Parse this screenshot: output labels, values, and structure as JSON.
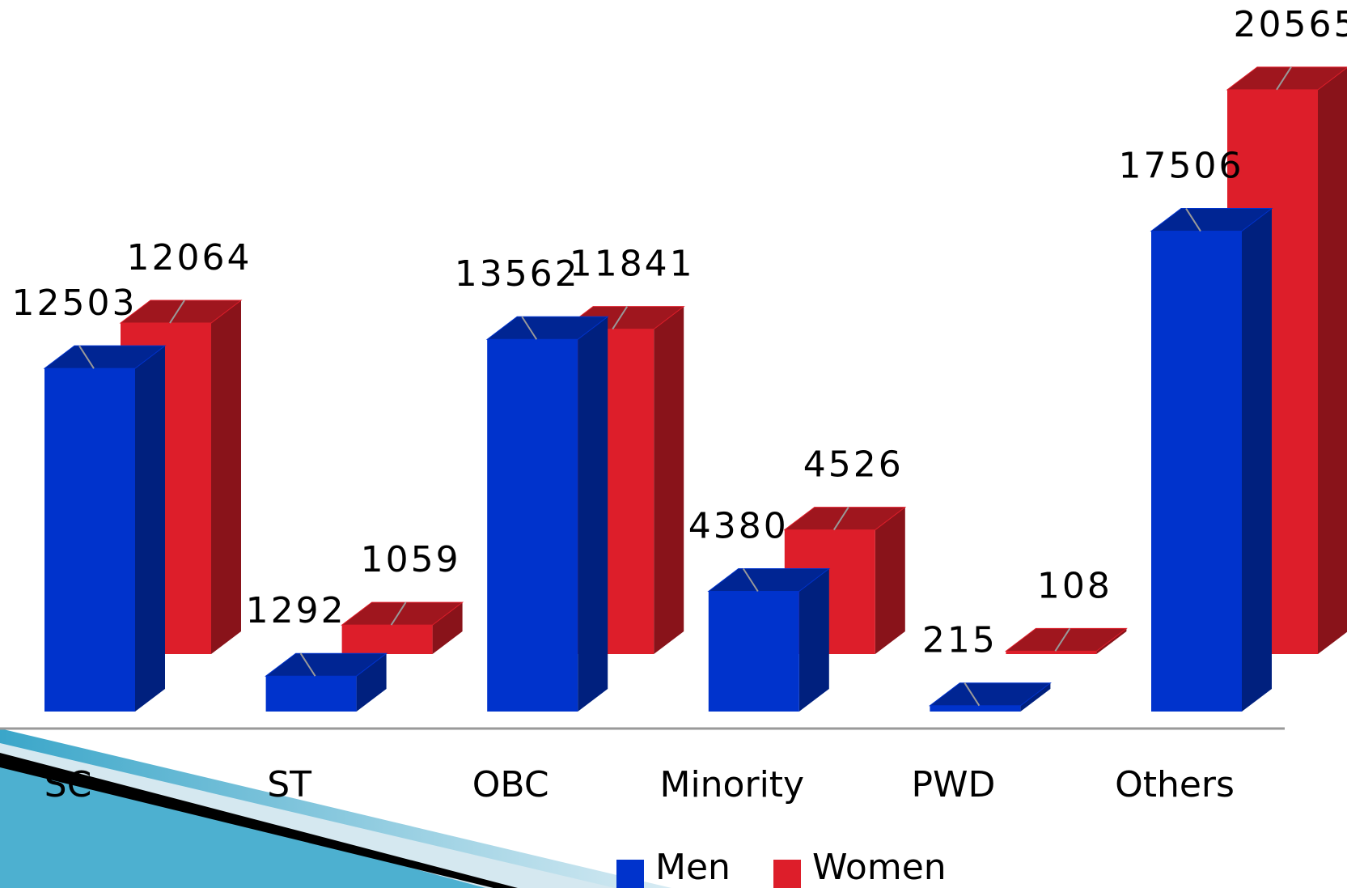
{
  "chart_data": {
    "type": "bar3d",
    "categories": [
      "SC",
      "ST",
      "OBC",
      "Minority",
      "PWD",
      "Others"
    ],
    "series": [
      {
        "name": "Men",
        "color": "#0033cc",
        "values": [
          12503,
          1292,
          13562,
          4380,
          215,
          17506
        ]
      },
      {
        "name": "Women",
        "color": "#dd1e2a",
        "values": [
          12064,
          1059,
          11841,
          4526,
          108,
          20565
        ]
      }
    ]
  }
}
